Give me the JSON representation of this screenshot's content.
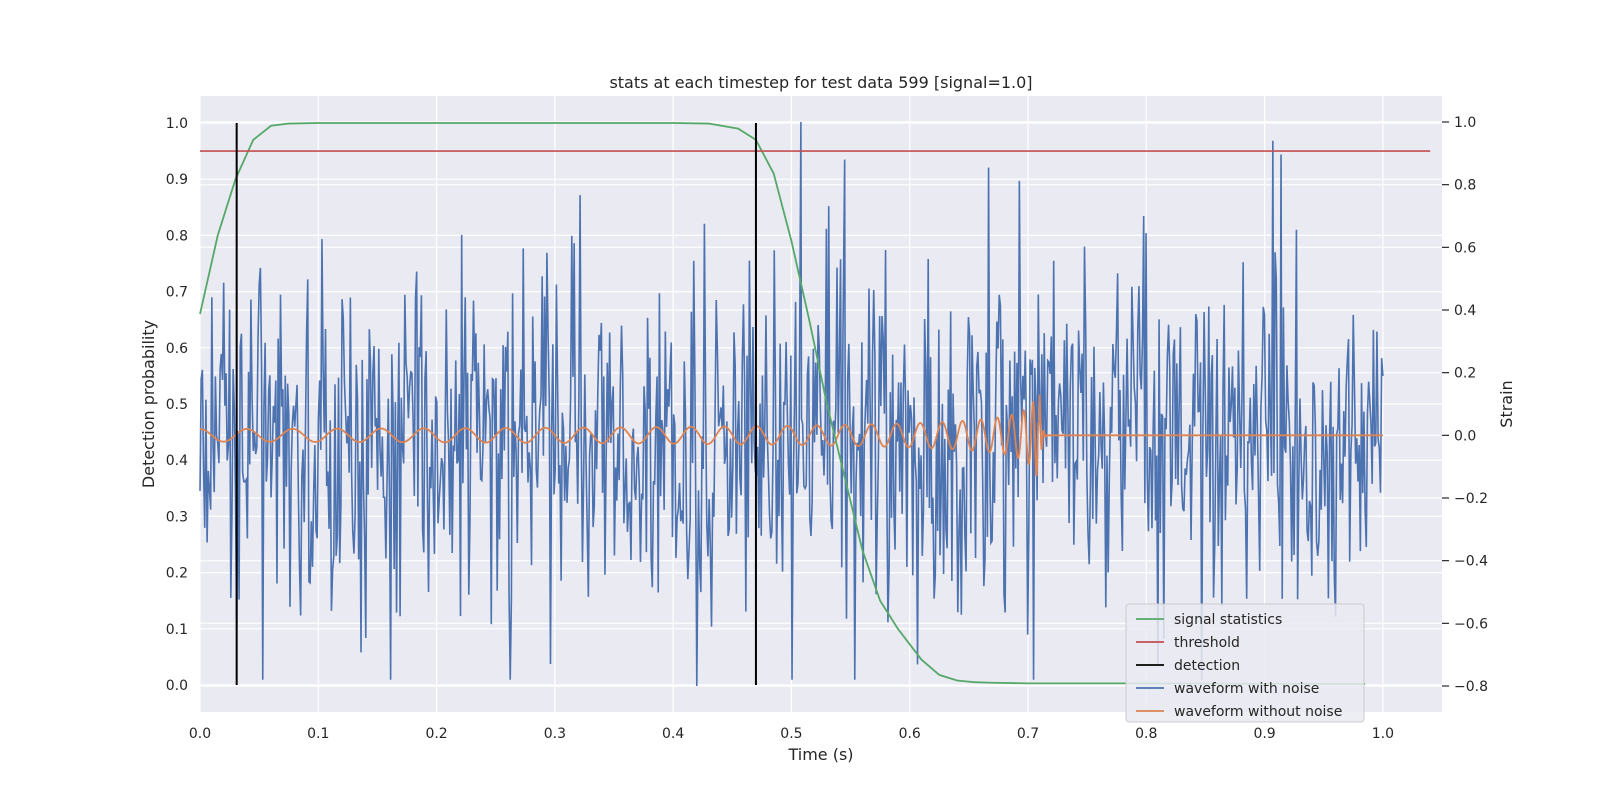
{
  "chart_data": {
    "type": "line",
    "title": "stats at each timestep for test data 599 [signal=1.0]",
    "xlabel": "Time (s)",
    "ylabel_left": "Detection probability",
    "ylabel_right": "Strain",
    "xlim": [
      0.0,
      1.05
    ],
    "ylim_left": [
      -0.048,
      1.048
    ],
    "ylim_right": [
      -0.883,
      1.083
    ],
    "x_ticks": [
      0.0,
      0.1,
      0.2,
      0.3,
      0.4,
      0.5,
      0.6,
      0.7,
      0.8,
      0.9,
      1.0
    ],
    "x_tick_labels": [
      "0.0",
      "0.1",
      "0.2",
      "0.3",
      "0.4",
      "0.5",
      "0.6",
      "0.7",
      "0.8",
      "0.9",
      "1.0"
    ],
    "y_left_ticks": [
      0.0,
      0.1,
      0.2,
      0.3,
      0.4,
      0.5,
      0.6,
      0.7,
      0.8,
      0.9,
      1.0
    ],
    "y_left_tick_labels": [
      "0.0",
      "0.1",
      "0.2",
      "0.3",
      "0.4",
      "0.5",
      "0.6",
      "0.7",
      "0.8",
      "0.9",
      "1.0"
    ],
    "y_right_ticks": [
      -0.8,
      -0.6,
      -0.4,
      -0.2,
      0.0,
      0.2,
      0.4,
      0.6,
      0.8,
      1.0
    ],
    "y_right_tick_labels": [
      "−0.8",
      "−0.6",
      "−0.4",
      "−0.2",
      "0.0",
      "0.2",
      "0.4",
      "0.6",
      "0.8",
      "1.0"
    ],
    "grid": true,
    "legend_position": "lower-right",
    "background_color": "#eaeaf2",
    "series": [
      {
        "name": "signal statistics",
        "color": "#55a868",
        "axis": "left",
        "x": [
          0.0,
          0.015,
          0.03,
          0.045,
          0.06,
          0.075,
          0.1,
          0.2,
          0.3,
          0.4,
          0.43,
          0.455,
          0.47,
          0.485,
          0.5,
          0.515,
          0.53,
          0.545,
          0.56,
          0.575,
          0.59,
          0.61,
          0.625,
          0.64,
          0.655,
          0.67,
          0.7,
          0.8,
          0.9,
          0.985
        ],
        "y": [
          0.66,
          0.8,
          0.9,
          0.97,
          0.995,
          0.999,
          1.0,
          1.0,
          1.0,
          1.0,
          0.999,
          0.99,
          0.97,
          0.91,
          0.79,
          0.65,
          0.5,
          0.37,
          0.24,
          0.15,
          0.1,
          0.045,
          0.018,
          0.008,
          0.005,
          0.004,
          0.003,
          0.003,
          0.002,
          0.002
        ]
      },
      {
        "name": "threshold",
        "color": "#c44e52",
        "axis": "left",
        "x": [
          0.0,
          1.04
        ],
        "y": [
          0.95,
          0.95
        ]
      },
      {
        "name": "detection",
        "color": "#000000",
        "axis": "left",
        "segments": [
          {
            "x": 0.031,
            "y": [
              0.0,
              1.0
            ]
          },
          {
            "x": 0.47,
            "y": [
              0.0,
              1.0
            ]
          }
        ]
      },
      {
        "name": "waveform with noise",
        "color": "#4c72b0",
        "axis": "right",
        "description_points": "dense noise, approx 1000 samples between -0.8 and 1.0 strain",
        "notable_peaks": [
          [
            0.508,
            1.0
          ],
          [
            0.907,
            0.94
          ],
          [
            0.42,
            -0.8
          ],
          [
            0.545,
            0.88
          ]
        ]
      },
      {
        "name": "waveform without noise",
        "color": "#dd8452",
        "axis": "right",
        "description_points": "chirp signal with growing amplitude and frequency from t=0 to ~0.71, zero afterwards",
        "amplitude_at_start": 0.02,
        "amplitude_at_merger": 0.13,
        "merger_time": 0.71
      }
    ]
  },
  "legend": {
    "items": [
      {
        "label": "signal statistics",
        "color": "#55a868"
      },
      {
        "label": "threshold",
        "color": "#c44e52"
      },
      {
        "label": "detection",
        "color": "#000000"
      },
      {
        "label": "waveform with noise",
        "color": "#4c72b0"
      },
      {
        "label": "waveform without noise",
        "color": "#dd8452"
      }
    ]
  }
}
